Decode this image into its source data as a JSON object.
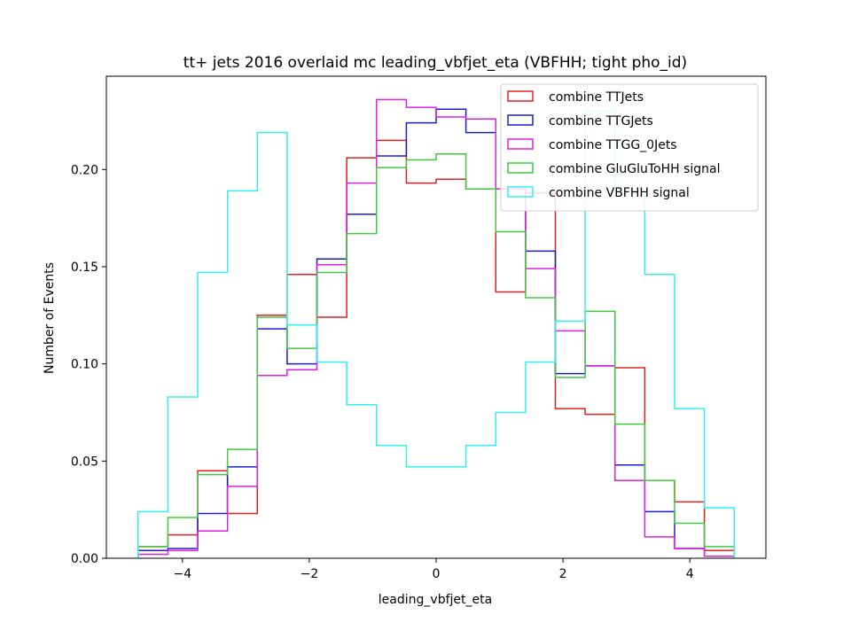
{
  "chart_data": {
    "type": "step-histogram",
    "title": "tt+ jets 2016 overlaid mc leading_vbfjet_eta (VBFHH; tight pho_id)",
    "xlabel": "leading_vbfjet_eta",
    "ylabel": "Number of Events",
    "xlim": [
      -5.2,
      5.2
    ],
    "ylim": [
      0,
      0.248
    ],
    "xticks": [
      -4,
      -2,
      0,
      2,
      4
    ],
    "xtick_labels": [
      "−4",
      "−2",
      "0",
      "2",
      "4"
    ],
    "yticks": [
      0.0,
      0.05,
      0.1,
      0.15,
      0.2
    ],
    "ytick_labels": [
      "0.00",
      "0.05",
      "0.10",
      "0.15",
      "0.20"
    ],
    "grid": false,
    "legend_position": "upper right",
    "bin_edges": [
      -4.7,
      -4.23,
      -3.76,
      -3.29,
      -2.82,
      -2.35,
      -1.88,
      -1.41,
      -0.94,
      -0.47,
      0.0,
      0.47,
      0.94,
      1.41,
      1.88,
      2.35,
      2.82,
      3.29,
      3.76,
      4.23,
      4.7
    ],
    "series": [
      {
        "name": "combine TTJets",
        "color": "#e02020",
        "values": [
          0.006,
          0.012,
          0.045,
          0.023,
          0.125,
          0.146,
          0.124,
          0.206,
          0.215,
          0.193,
          0.195,
          0.19,
          0.137,
          0.188,
          0.077,
          0.074,
          0.098,
          0.04,
          0.029,
          0.004
        ]
      },
      {
        "name": "combine TTGJets",
        "color": "#1c1ccc",
        "values": [
          0.004,
          0.005,
          0.023,
          0.047,
          0.118,
          0.1,
          0.154,
          0.177,
          0.207,
          0.224,
          0.231,
          0.219,
          0.19,
          0.158,
          0.095,
          0.099,
          0.048,
          0.024,
          0.005,
          0.001
        ]
      },
      {
        "name": "combine TTGG_0Jets",
        "color": "#e020e0",
        "values": [
          0.002,
          0.004,
          0.014,
          0.037,
          0.094,
          0.097,
          0.151,
          0.193,
          0.236,
          0.232,
          0.227,
          0.226,
          0.19,
          0.149,
          0.117,
          0.099,
          0.04,
          0.011,
          0.005,
          0.001
        ]
      },
      {
        "name": "combine GluGluToHH signal",
        "color": "#40c840",
        "values": [
          0.006,
          0.021,
          0.043,
          0.056,
          0.124,
          0.108,
          0.147,
          0.167,
          0.201,
          0.205,
          0.208,
          0.19,
          0.168,
          0.134,
          0.093,
          0.127,
          0.069,
          0.04,
          0.018,
          0.006
        ]
      },
      {
        "name": "combine VBFHH signal",
        "color": "#30f0f0",
        "values": [
          0.024,
          0.083,
          0.147,
          0.189,
          0.219,
          0.12,
          0.101,
          0.079,
          0.058,
          0.047,
          0.047,
          0.058,
          0.075,
          0.101,
          0.122,
          0.23,
          0.189,
          0.146,
          0.077,
          0.026
        ]
      }
    ]
  }
}
